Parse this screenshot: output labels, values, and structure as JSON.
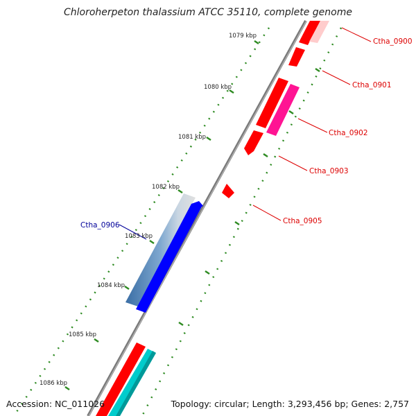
{
  "title": "Chloroherpeton thalassium ATCC 35110, complete genome",
  "footer": {
    "accession": "Accession: NC_011026",
    "summary": "Topology: circular; Length: 3,293,456 bp; Genes: 2,757"
  },
  "colors": {
    "backbone": "#7a7a7a",
    "tick_mark": "#2e8b22",
    "forward_cds": "#ff0000",
    "reverse_cds": "#ff0000",
    "pink_feature": "#ff1493",
    "blue_cds": "#0000ff",
    "cyan_feature": "#00cccc",
    "steelblue_feature": "#4a7fb5",
    "label_red": "#dd0000",
    "label_blue": "#000099"
  },
  "scale_labels": [
    "1079 kbp",
    "1080 kbp",
    "1081 kbp",
    "1082 kbp",
    "1083 kbp",
    "1084 kbp",
    "1085 kbp",
    "1086 kbp"
  ],
  "gene_labels": [
    {
      "id": "Ctha_0900",
      "text": "Ctha_0900",
      "color_key": "label_red"
    },
    {
      "id": "Ctha_0901",
      "text": "Ctha_0901",
      "color_key": "label_red"
    },
    {
      "id": "Ctha_0902",
      "text": "Ctha_0902",
      "color_key": "label_red"
    },
    {
      "id": "Ctha_0903",
      "text": "Ctha_0903",
      "color_key": "label_red"
    },
    {
      "id": "Ctha_0905",
      "text": "Ctha_0905",
      "color_key": "label_red"
    },
    {
      "id": "Ctha_0906",
      "text": "Ctha_0906",
      "color_key": "label_blue"
    }
  ]
}
